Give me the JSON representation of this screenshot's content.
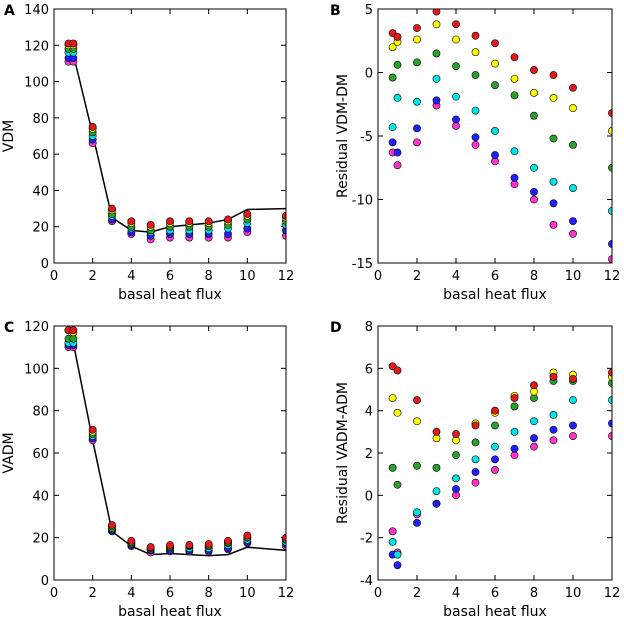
{
  "chart_data": [
    {
      "id": "A",
      "type": "scatter",
      "panel_label": "A",
      "xlabel": "basal heat flux",
      "ylabel": "VDM",
      "xlim": [
        0,
        12
      ],
      "ylim": [
        0,
        140
      ],
      "xticks": [
        0,
        2,
        4,
        6,
        8,
        10,
        12
      ],
      "yticks": [
        0,
        20,
        40,
        60,
        80,
        100,
        120,
        140
      ],
      "x": [
        0.75,
        1,
        2,
        3,
        4,
        5,
        6,
        7,
        8,
        9,
        10,
        12
      ],
      "line": {
        "name": "model",
        "color": "#000000",
        "y": [
          115,
          115,
          71,
          25,
          18,
          17,
          20,
          21,
          22,
          24,
          29.5,
          30
        ]
      },
      "series": [
        {
          "name": "red",
          "color": "#e31a1c",
          "values": [
            121,
            121,
            75,
            30,
            23,
            21,
            23,
            23,
            23,
            24,
            27,
            26
          ]
        },
        {
          "name": "yellow",
          "color": "#ffff00",
          "values": [
            120,
            120,
            74,
            29,
            22,
            20,
            22,
            22,
            22,
            23,
            26,
            25
          ]
        },
        {
          "name": "green",
          "color": "#2ca02c",
          "values": [
            118,
            118,
            72,
            27,
            20,
            18,
            20,
            20,
            20,
            21,
            24,
            23
          ]
        },
        {
          "name": "cyan",
          "color": "#00e5e5",
          "values": [
            116,
            116,
            70,
            26,
            19,
            17,
            18,
            18,
            18,
            19,
            22,
            21
          ]
        },
        {
          "name": "blue",
          "color": "#1f1fff",
          "values": [
            113,
            113,
            68,
            24,
            17,
            15,
            16,
            16,
            16,
            16,
            19,
            18
          ]
        },
        {
          "name": "magenta",
          "color": "#ff33cc",
          "values": [
            111,
            111,
            66,
            23,
            16,
            13,
            14,
            14,
            14,
            14,
            17,
            15
          ]
        }
      ]
    },
    {
      "id": "B",
      "type": "scatter",
      "panel_label": "B",
      "xlabel": "basal heat flux",
      "ylabel": "Residual VDM-DM",
      "xlim": [
        0,
        12
      ],
      "ylim": [
        -15,
        5
      ],
      "xticks": [
        0,
        2,
        4,
        6,
        8,
        10,
        12
      ],
      "yticks": [
        -15,
        -10,
        -5,
        0,
        5
      ],
      "x": [
        0.75,
        1,
        2,
        3,
        4,
        5,
        6,
        7,
        8,
        9,
        10,
        12
      ],
      "series": [
        {
          "name": "red",
          "color": "#e31a1c",
          "values": [
            3.1,
            2.8,
            3.5,
            4.8,
            3.8,
            2.9,
            2.3,
            1.2,
            0.2,
            -0.2,
            -1.2,
            -3.2
          ]
        },
        {
          "name": "yellow",
          "color": "#ffff00",
          "values": [
            2.0,
            2.4,
            2.6,
            3.8,
            2.6,
            1.6,
            0.7,
            -0.5,
            -1.6,
            -2.0,
            -2.8,
            -4.6
          ]
        },
        {
          "name": "green",
          "color": "#2ca02c",
          "values": [
            -0.4,
            0.6,
            0.8,
            1.5,
            0.5,
            -0.2,
            -1.0,
            -1.8,
            -3.4,
            -5.2,
            -5.7,
            -7.5
          ]
        },
        {
          "name": "cyan",
          "color": "#00e5e5",
          "values": [
            -4.3,
            -2.0,
            -2.3,
            -0.5,
            -1.9,
            -3.0,
            -4.6,
            -6.2,
            -7.5,
            -8.6,
            -9.1,
            -10.9
          ]
        },
        {
          "name": "blue",
          "color": "#1f1fff",
          "values": [
            -5.5,
            -6.3,
            -4.4,
            -2.2,
            -3.7,
            -5.1,
            -6.5,
            -8.3,
            -9.4,
            -10.3,
            -11.7,
            -13.5
          ]
        },
        {
          "name": "magenta",
          "color": "#ff33cc",
          "values": [
            -6.3,
            -7.3,
            -5.5,
            -2.6,
            -4.2,
            -5.7,
            -7.0,
            -8.8,
            -10.0,
            -12.0,
            -12.7,
            -14.7
          ]
        }
      ]
    },
    {
      "id": "C",
      "type": "scatter",
      "panel_label": "C",
      "xlabel": "basal heat flux",
      "ylabel": "VADM",
      "xlim": [
        0,
        12
      ],
      "ylim": [
        0,
        120
      ],
      "xticks": [
        0,
        2,
        4,
        6,
        8,
        10,
        12
      ],
      "yticks": [
        0,
        20,
        40,
        60,
        80,
        100,
        120
      ],
      "x": [
        0.75,
        1,
        2,
        3,
        4,
        5,
        6,
        7,
        8,
        9,
        10,
        12
      ],
      "line": {
        "name": "model",
        "color": "#000000",
        "y": [
          112,
          112,
          66,
          23,
          16,
          12,
          12.5,
          12,
          11.5,
          12,
          15.5,
          14
        ]
      },
      "series": [
        {
          "name": "red",
          "color": "#e31a1c",
          "values": [
            118,
            118,
            71,
            26,
            18.5,
            15.5,
            16.5,
            16.5,
            17,
            18.5,
            21,
            20
          ]
        },
        {
          "name": "yellow",
          "color": "#ffff00",
          "values": [
            118,
            117,
            70,
            25.5,
            18,
            15.5,
            16,
            16.5,
            16.5,
            18,
            20.5,
            19.5
          ]
        },
        {
          "name": "green",
          "color": "#2ca02c",
          "values": [
            114,
            114,
            69,
            24.5,
            17.5,
            15,
            15.5,
            16,
            16,
            17.5,
            20,
            19
          ]
        },
        {
          "name": "cyan",
          "color": "#00e5e5",
          "values": [
            112,
            112,
            68,
            24,
            17,
            14.5,
            15,
            15,
            15,
            16.5,
            19,
            18
          ]
        },
        {
          "name": "blue",
          "color": "#1f1fff",
          "values": [
            111,
            111,
            67,
            23.5,
            16.5,
            14,
            14,
            14,
            14,
            15,
            18,
            17
          ]
        },
        {
          "name": "magenta",
          "color": "#ff33cc",
          "values": [
            110,
            110,
            66,
            23,
            16,
            13,
            13.5,
            13.5,
            13.5,
            14.5,
            17.5,
            16
          ]
        }
      ]
    },
    {
      "id": "D",
      "type": "scatter",
      "panel_label": "D",
      "xlabel": "basal heat flux",
      "ylabel": "Residual VADM-ADM",
      "xlim": [
        0,
        12
      ],
      "ylim": [
        -4,
        8
      ],
      "xticks": [
        0,
        2,
        4,
        6,
        8,
        10,
        12
      ],
      "yticks": [
        -4,
        -2,
        0,
        2,
        4,
        6,
        8
      ],
      "x": [
        0.75,
        1,
        2,
        3,
        4,
        5,
        6,
        7,
        8,
        9,
        10,
        12
      ],
      "series": [
        {
          "name": "red",
          "color": "#e31a1c",
          "values": [
            6.1,
            5.9,
            4.5,
            3.0,
            2.9,
            3.3,
            4.0,
            4.6,
            5.2,
            5.6,
            5.5,
            5.8
          ]
        },
        {
          "name": "yellow",
          "color": "#ffff00",
          "values": [
            4.6,
            3.9,
            3.5,
            2.7,
            2.6,
            3.4,
            3.9,
            4.7,
            4.9,
            5.8,
            5.7,
            5.6
          ]
        },
        {
          "name": "green",
          "color": "#2ca02c",
          "values": [
            1.3,
            0.5,
            1.4,
            1.3,
            1.9,
            2.5,
            3.3,
            4.2,
            4.6,
            5.4,
            5.4,
            5.3
          ]
        },
        {
          "name": "cyan",
          "color": "#00e5e5",
          "values": [
            -2.2,
            -2.8,
            -0.8,
            0.2,
            0.8,
            1.7,
            2.3,
            3.0,
            3.5,
            3.8,
            4.5,
            4.5
          ]
        },
        {
          "name": "blue",
          "color": "#1f1fff",
          "values": [
            -2.8,
            -3.3,
            -1.3,
            -0.4,
            0.3,
            1.1,
            1.7,
            2.2,
            2.7,
            3.1,
            3.3,
            3.4
          ]
        },
        {
          "name": "magenta",
          "color": "#ff33cc",
          "values": [
            -1.7,
            -2.7,
            -0.9,
            -0.4,
            0.0,
            0.6,
            1.2,
            1.9,
            2.3,
            2.6,
            2.8,
            2.8
          ]
        }
      ]
    }
  ]
}
